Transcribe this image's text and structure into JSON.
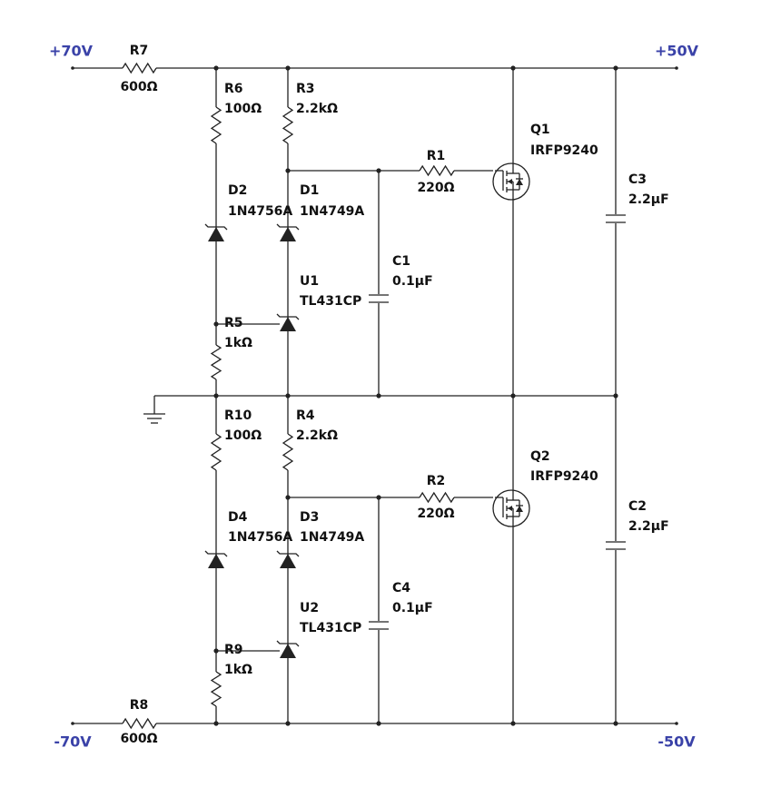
{
  "nets": [
    {
      "label": "+70V"
    },
    {
      "label": "+50V"
    },
    {
      "label": "-70V"
    },
    {
      "label": "-50V"
    }
  ],
  "components": [
    {
      "ref": "R7",
      "value": "600Ω"
    },
    {
      "ref": "R6",
      "value": "100Ω"
    },
    {
      "ref": "R3",
      "value": "2.2kΩ"
    },
    {
      "ref": "R1",
      "value": "220Ω"
    },
    {
      "ref": "Q1",
      "value": "IRFP9240"
    },
    {
      "ref": "D2",
      "value": "1N4756A"
    },
    {
      "ref": "D1",
      "value": "1N4749A"
    },
    {
      "ref": "C1",
      "value": "0.1µF"
    },
    {
      "ref": "U1",
      "value": "TL431CP"
    },
    {
      "ref": "R5",
      "value": "1kΩ"
    },
    {
      "ref": "C3",
      "value": "2.2µF"
    },
    {
      "ref": "R10",
      "value": "100Ω"
    },
    {
      "ref": "R4",
      "value": "2.2kΩ"
    },
    {
      "ref": "R2",
      "value": "220Ω"
    },
    {
      "ref": "Q2",
      "value": "IRFP9240"
    },
    {
      "ref": "D4",
      "value": "1N4756A"
    },
    {
      "ref": "D3",
      "value": "1N4749A"
    },
    {
      "ref": "C4",
      "value": "0.1µF"
    },
    {
      "ref": "U2",
      "value": "TL431CP"
    },
    {
      "ref": "R9",
      "value": "1kΩ"
    },
    {
      "ref": "C2",
      "value": "2.2µF"
    },
    {
      "ref": "R8",
      "value": "600Ω"
    }
  ]
}
